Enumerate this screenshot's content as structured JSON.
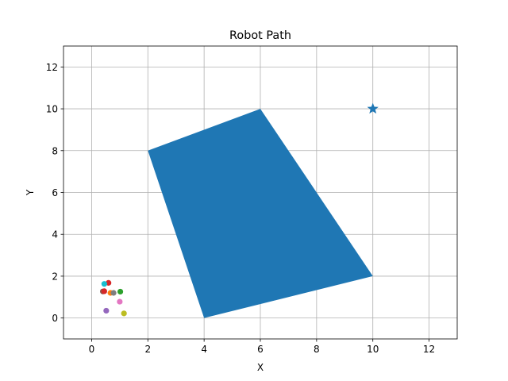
{
  "chart_data": {
    "type": "scatter",
    "title": "Robot Path",
    "xlabel": "X",
    "ylabel": "Y",
    "xlim": [
      -1,
      13
    ],
    "ylim": [
      -1,
      13
    ],
    "xticks": [
      0,
      2,
      4,
      6,
      8,
      10,
      12
    ],
    "yticks": [
      0,
      2,
      4,
      6,
      8,
      10,
      12
    ],
    "grid": true,
    "polygon": {
      "vertices": [
        [
          4,
          0
        ],
        [
          10,
          2
        ],
        [
          6,
          10
        ],
        [
          2,
          8
        ]
      ],
      "color": "#1f77b4"
    },
    "goal": {
      "x": 10,
      "y": 10,
      "marker": "star",
      "color": "#1f77b4"
    },
    "points": [
      {
        "x": 0.52,
        "y": 0.35,
        "color": "#9467bd"
      },
      {
        "x": 1.15,
        "y": 0.22,
        "color": "#bcbd22"
      },
      {
        "x": 1.0,
        "y": 0.78,
        "color": "#e377c2"
      },
      {
        "x": 0.4,
        "y": 1.27,
        "color": "#8c564b"
      },
      {
        "x": 0.45,
        "y": 1.28,
        "color": "#d62728"
      },
      {
        "x": 0.67,
        "y": 1.2,
        "color": "#ff7f0e"
      },
      {
        "x": 0.78,
        "y": 1.2,
        "color": "#7f7f7f"
      },
      {
        "x": 1.02,
        "y": 1.26,
        "color": "#2ca02c"
      },
      {
        "x": 0.6,
        "y": 1.68,
        "color": "#d62728"
      },
      {
        "x": 0.45,
        "y": 1.63,
        "color": "#17becf"
      }
    ]
  }
}
